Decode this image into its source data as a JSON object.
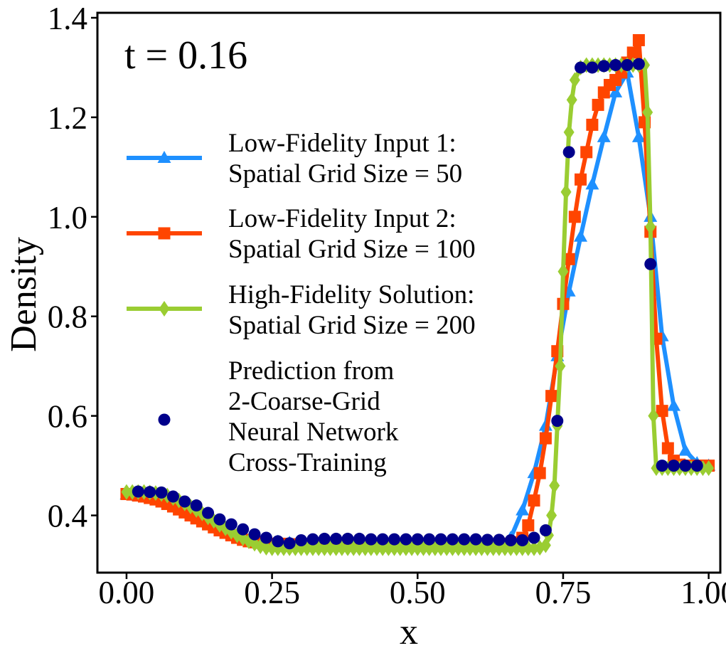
{
  "chart_data": {
    "type": "line",
    "annotation": "t = 0.16",
    "xlabel": "x",
    "ylabel": "Density",
    "xlim": [
      -0.05,
      1.02
    ],
    "ylim": [
      0.285,
      1.41
    ],
    "xticks": [
      0.0,
      0.25,
      0.5,
      0.75,
      1.0
    ],
    "xtick_labels": [
      "0.00",
      "0.25",
      "0.50",
      "0.75",
      "1.00"
    ],
    "yticks": [
      0.4,
      0.6,
      0.8,
      1.0,
      1.2,
      1.4
    ],
    "ytick_labels": [
      "0.4",
      "0.6",
      "0.8",
      "1.0",
      "1.2",
      "1.4"
    ],
    "grid": false,
    "legend_position": "center-left",
    "series": [
      {
        "name": "Low-Fidelity Input 1:\nSpatial Grid Size = 50",
        "color": "#1e90ff",
        "marker": "triangle",
        "x": [
          0.0,
          0.02,
          0.04,
          0.06,
          0.08,
          0.1,
          0.12,
          0.14,
          0.16,
          0.18,
          0.2,
          0.22,
          0.24,
          0.26,
          0.28,
          0.3,
          0.32,
          0.34,
          0.36,
          0.38,
          0.4,
          0.42,
          0.44,
          0.46,
          0.48,
          0.5,
          0.52,
          0.54,
          0.56,
          0.58,
          0.6,
          0.62,
          0.64,
          0.66,
          0.68,
          0.7,
          0.72,
          0.74,
          0.76,
          0.78,
          0.8,
          0.82,
          0.84,
          0.86,
          0.88,
          0.9,
          0.92,
          0.94,
          0.96,
          0.98,
          1.0
        ],
        "y": [
          0.442,
          0.439,
          0.436,
          0.432,
          0.425,
          0.415,
          0.404,
          0.392,
          0.381,
          0.37,
          0.361,
          0.355,
          0.35,
          0.347,
          0.345,
          0.344,
          0.344,
          0.343,
          0.343,
          0.343,
          0.342,
          0.342,
          0.342,
          0.342,
          0.341,
          0.341,
          0.341,
          0.341,
          0.341,
          0.341,
          0.341,
          0.341,
          0.342,
          0.355,
          0.41,
          0.485,
          0.58,
          0.72,
          0.85,
          0.96,
          1.065,
          1.16,
          1.25,
          1.29,
          1.16,
          1.0,
          0.76,
          0.62,
          0.53,
          0.505,
          0.5
        ]
      },
      {
        "name": "Low-Fidelity Input 2:\nSpatial Grid Size = 100",
        "color": "#ff4500",
        "marker": "square",
        "x": [
          0.0,
          0.01,
          0.02,
          0.03,
          0.04,
          0.05,
          0.06,
          0.07,
          0.08,
          0.09,
          0.1,
          0.11,
          0.12,
          0.13,
          0.14,
          0.15,
          0.16,
          0.17,
          0.18,
          0.19,
          0.2,
          0.21,
          0.22,
          0.23,
          0.24,
          0.25,
          0.26,
          0.27,
          0.28,
          0.29,
          0.3,
          0.31,
          0.32,
          0.33,
          0.34,
          0.35,
          0.36,
          0.37,
          0.38,
          0.39,
          0.4,
          0.41,
          0.42,
          0.43,
          0.44,
          0.45,
          0.46,
          0.47,
          0.48,
          0.49,
          0.5,
          0.51,
          0.52,
          0.53,
          0.54,
          0.55,
          0.56,
          0.57,
          0.58,
          0.59,
          0.6,
          0.61,
          0.62,
          0.63,
          0.64,
          0.65,
          0.66,
          0.67,
          0.68,
          0.69,
          0.7,
          0.71,
          0.72,
          0.73,
          0.74,
          0.75,
          0.76,
          0.77,
          0.78,
          0.79,
          0.8,
          0.81,
          0.82,
          0.83,
          0.84,
          0.85,
          0.86,
          0.87,
          0.88,
          0.89,
          0.9,
          0.91,
          0.92,
          0.93,
          0.94,
          0.95,
          0.96,
          0.97,
          0.98,
          0.99,
          1.0
        ],
        "y": [
          0.443,
          0.442,
          0.44,
          0.438,
          0.435,
          0.432,
          0.428,
          0.423,
          0.418,
          0.412,
          0.406,
          0.4,
          0.394,
          0.388,
          0.382,
          0.376,
          0.37,
          0.365,
          0.36,
          0.355,
          0.351,
          0.348,
          0.346,
          0.345,
          0.344,
          0.343,
          0.343,
          0.343,
          0.342,
          0.342,
          0.342,
          0.342,
          0.342,
          0.342,
          0.342,
          0.342,
          0.342,
          0.342,
          0.342,
          0.342,
          0.342,
          0.342,
          0.342,
          0.342,
          0.342,
          0.342,
          0.342,
          0.342,
          0.342,
          0.342,
          0.342,
          0.342,
          0.342,
          0.342,
          0.342,
          0.342,
          0.342,
          0.342,
          0.342,
          0.342,
          0.342,
          0.342,
          0.342,
          0.342,
          0.342,
          0.342,
          0.343,
          0.346,
          0.355,
          0.38,
          0.43,
          0.485,
          0.555,
          0.64,
          0.73,
          0.825,
          0.915,
          1.0,
          1.075,
          1.13,
          1.185,
          1.225,
          1.25,
          1.265,
          1.275,
          1.29,
          1.31,
          1.33,
          1.355,
          1.19,
          0.97,
          0.755,
          0.61,
          0.535,
          0.51,
          0.502,
          0.5,
          0.5,
          0.5,
          0.5,
          0.5
        ]
      },
      {
        "name": "High-Fidelity Solution:\nSpatial Grid Size = 200",
        "color": "#9acd32",
        "marker": "diamond",
        "x": [
          0.0,
          0.01,
          0.02,
          0.03,
          0.04,
          0.05,
          0.06,
          0.07,
          0.08,
          0.09,
          0.1,
          0.11,
          0.12,
          0.13,
          0.14,
          0.15,
          0.16,
          0.17,
          0.18,
          0.19,
          0.2,
          0.21,
          0.22,
          0.23,
          0.24,
          0.25,
          0.26,
          0.27,
          0.28,
          0.29,
          0.3,
          0.31,
          0.32,
          0.33,
          0.34,
          0.35,
          0.36,
          0.37,
          0.38,
          0.39,
          0.4,
          0.41,
          0.42,
          0.43,
          0.44,
          0.45,
          0.46,
          0.47,
          0.48,
          0.49,
          0.5,
          0.51,
          0.52,
          0.53,
          0.54,
          0.55,
          0.56,
          0.57,
          0.58,
          0.59,
          0.6,
          0.61,
          0.62,
          0.63,
          0.64,
          0.65,
          0.66,
          0.67,
          0.68,
          0.69,
          0.7,
          0.71,
          0.72,
          0.725,
          0.73,
          0.735,
          0.74,
          0.745,
          0.75,
          0.755,
          0.76,
          0.765,
          0.77,
          0.78,
          0.79,
          0.8,
          0.81,
          0.82,
          0.83,
          0.84,
          0.85,
          0.86,
          0.87,
          0.88,
          0.89,
          0.895,
          0.9,
          0.905,
          0.91,
          0.92,
          0.93,
          0.94,
          0.95,
          0.96,
          0.97,
          0.98,
          0.99,
          1.0
        ],
        "y": [
          0.447,
          0.447,
          0.447,
          0.447,
          0.446,
          0.445,
          0.443,
          0.44,
          0.435,
          0.43,
          0.424,
          0.418,
          0.411,
          0.404,
          0.396,
          0.389,
          0.381,
          0.374,
          0.367,
          0.36,
          0.354,
          0.348,
          0.343,
          0.338,
          0.335,
          0.334,
          0.334,
          0.334,
          0.334,
          0.334,
          0.334,
          0.334,
          0.334,
          0.334,
          0.334,
          0.334,
          0.334,
          0.334,
          0.334,
          0.334,
          0.334,
          0.334,
          0.334,
          0.334,
          0.334,
          0.334,
          0.334,
          0.334,
          0.334,
          0.334,
          0.334,
          0.334,
          0.334,
          0.334,
          0.334,
          0.334,
          0.334,
          0.334,
          0.334,
          0.334,
          0.334,
          0.334,
          0.334,
          0.334,
          0.334,
          0.334,
          0.334,
          0.334,
          0.334,
          0.334,
          0.334,
          0.335,
          0.34,
          0.36,
          0.4,
          0.46,
          0.58,
          0.7,
          0.89,
          1.05,
          1.17,
          1.235,
          1.275,
          1.3,
          1.305,
          1.305,
          1.305,
          1.305,
          1.305,
          1.305,
          1.305,
          1.305,
          1.305,
          1.305,
          1.305,
          1.21,
          0.98,
          0.6,
          0.495,
          0.495,
          0.495,
          0.495,
          0.495,
          0.495,
          0.495,
          0.495,
          0.495,
          0.495
        ]
      },
      {
        "name": "Prediction from\n2-Coarse-Grid\nNeural Network\nCross-Training",
        "color": "#00008b",
        "marker": "circle",
        "line": false,
        "x": [
          0.02,
          0.04,
          0.06,
          0.08,
          0.1,
          0.12,
          0.14,
          0.16,
          0.18,
          0.2,
          0.22,
          0.24,
          0.26,
          0.28,
          0.3,
          0.32,
          0.34,
          0.36,
          0.38,
          0.4,
          0.42,
          0.44,
          0.46,
          0.48,
          0.5,
          0.52,
          0.54,
          0.56,
          0.58,
          0.6,
          0.62,
          0.64,
          0.66,
          0.68,
          0.7,
          0.72,
          0.74,
          0.76,
          0.78,
          0.8,
          0.82,
          0.84,
          0.86,
          0.88,
          0.9,
          0.92,
          0.94,
          0.96,
          0.98
        ],
        "y": [
          0.448,
          0.447,
          0.446,
          0.438,
          0.428,
          0.42,
          0.405,
          0.392,
          0.382,
          0.372,
          0.362,
          0.355,
          0.348,
          0.344,
          0.35,
          0.352,
          0.353,
          0.353,
          0.353,
          0.353,
          0.352,
          0.352,
          0.352,
          0.352,
          0.352,
          0.352,
          0.352,
          0.352,
          0.352,
          0.352,
          0.351,
          0.351,
          0.35,
          0.35,
          0.355,
          0.37,
          0.59,
          1.13,
          1.3,
          1.3,
          1.303,
          1.305,
          1.305,
          1.307,
          0.905,
          0.5,
          0.5,
          0.5,
          0.5
        ]
      }
    ]
  }
}
